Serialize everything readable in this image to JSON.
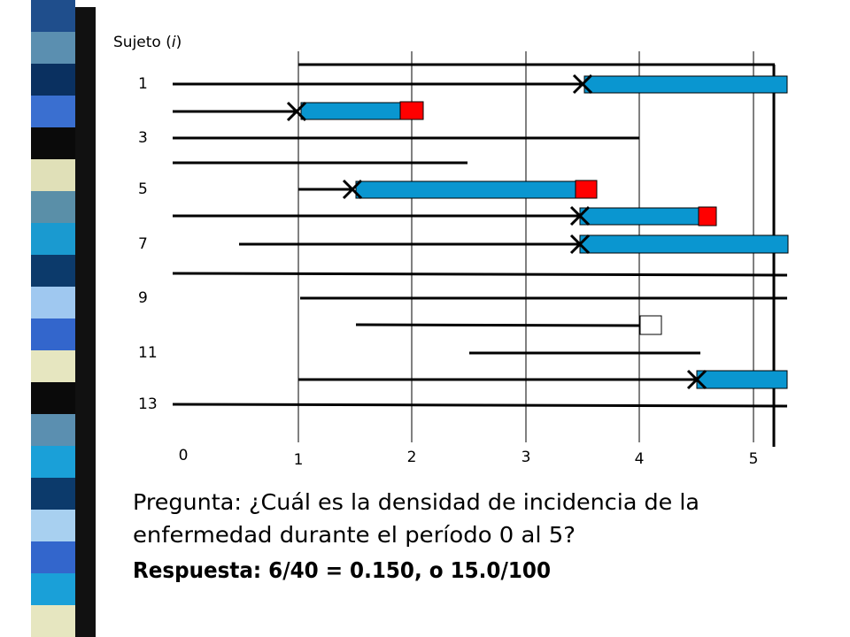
{
  "diagram": {
    "y_label": [
      "Sujeto (",
      "i",
      ")"
    ],
    "subject_labels": [
      "1",
      "3",
      "5",
      "7",
      "9",
      "11",
      "13"
    ],
    "x_labels": [
      "0",
      "1",
      "2",
      "3",
      "4",
      "5"
    ]
  },
  "question": [
    "Pregunta: ¿Cuál es la densidad de incidencia de la",
    "enfermedad durante el período 0 al 5?"
  ],
  "answer": "Respuesta: 6/40 = 0.150, o 15.0/100"
}
